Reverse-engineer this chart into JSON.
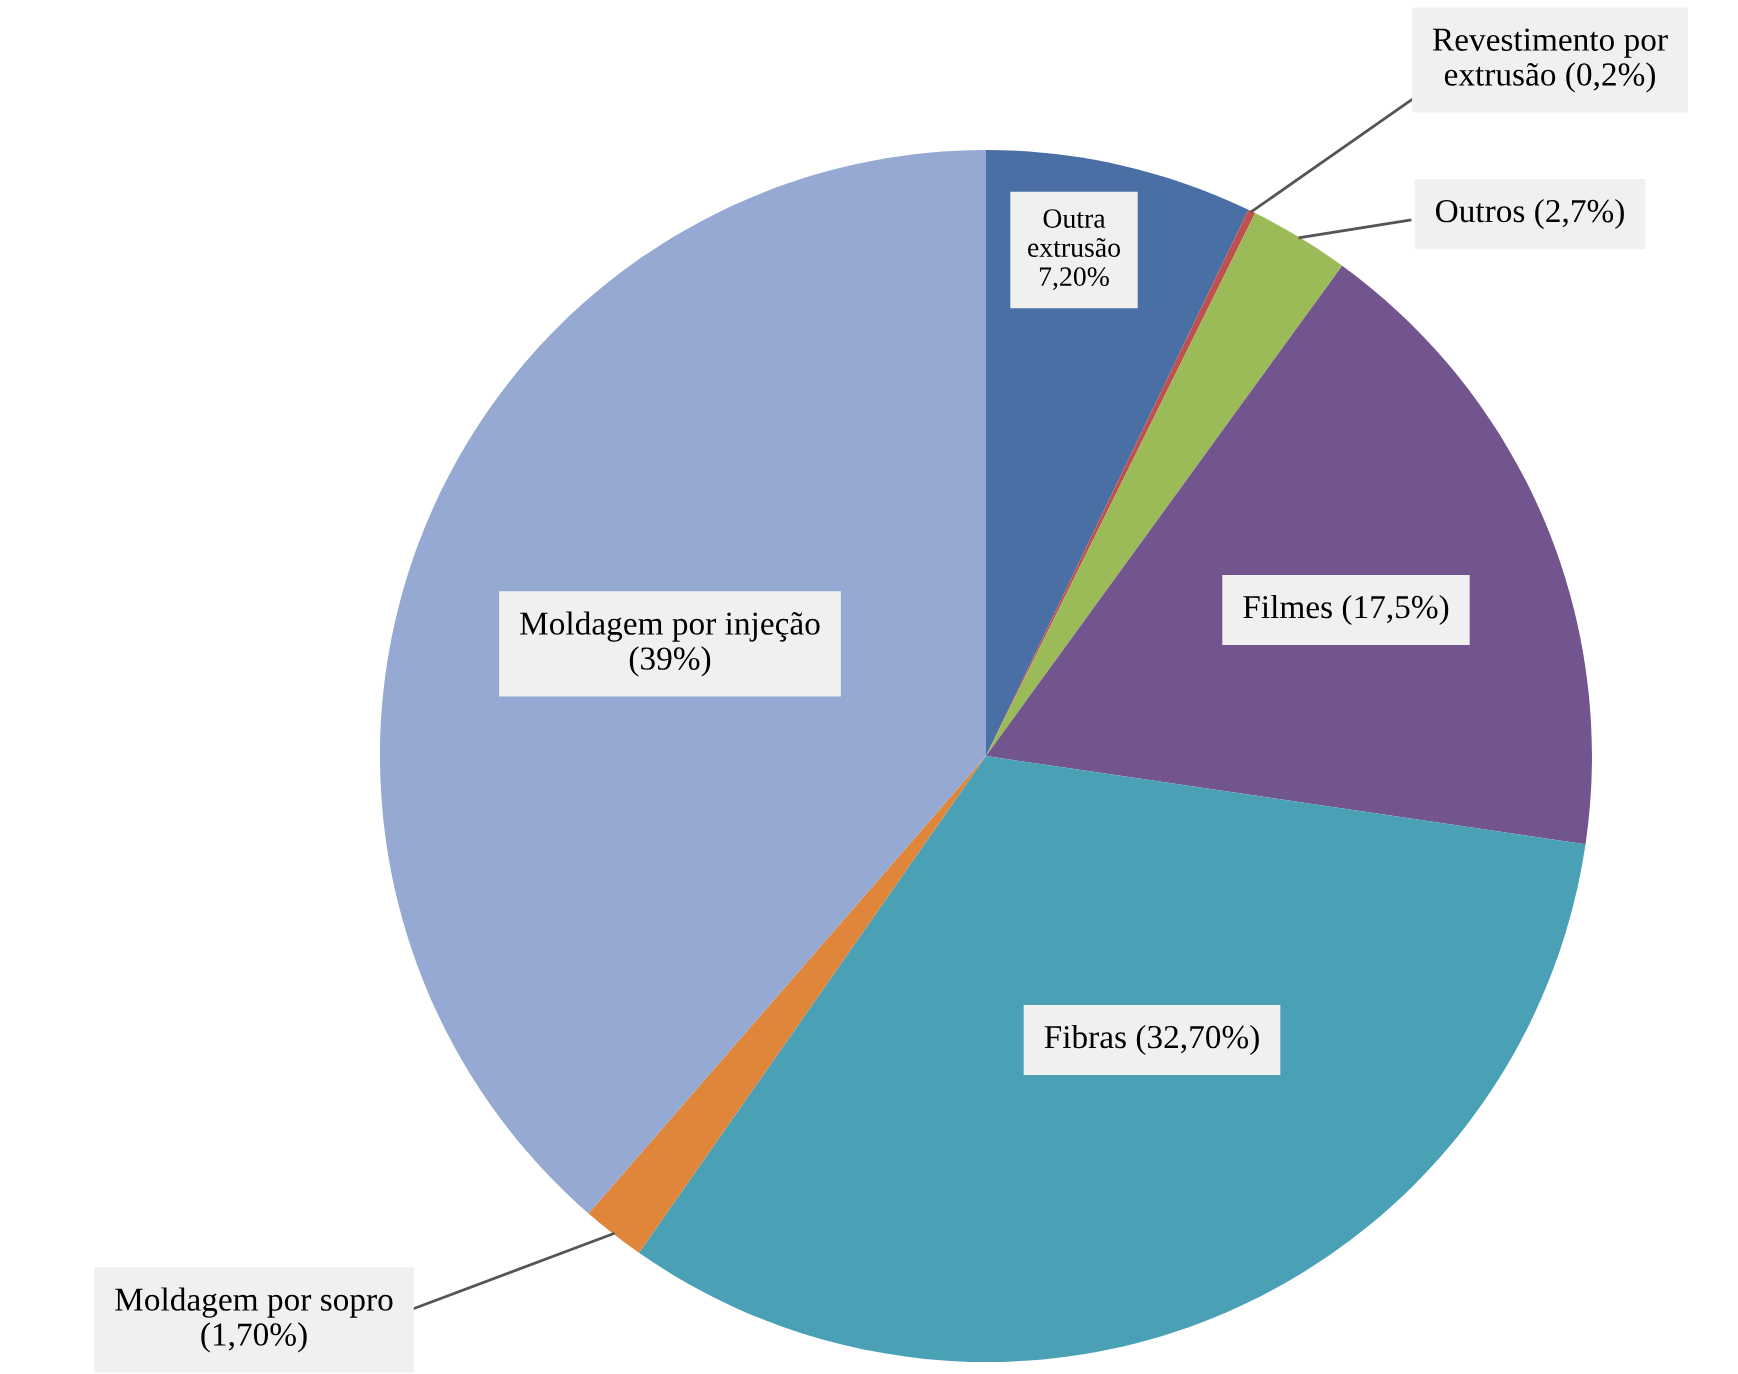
{
  "chart_data": {
    "type": "pie",
    "categories": [
      "Outra extrusão",
      "Revestimento por extrusão",
      "Outros",
      "Filmes",
      "Fibras",
      "Moldagem por sopro",
      "Moldagem por injeção"
    ],
    "values": [
      7.2,
      0.2,
      2.7,
      17.5,
      32.7,
      1.7,
      39
    ],
    "colors": [
      "#4a6fa5",
      "#c0504d",
      "#9bbb59",
      "#72558f",
      "#4aa0b5",
      "#e0863a",
      "#95a9d3"
    ],
    "value_labels": [
      "7,20%",
      "(0,2%)",
      "(2,7%)",
      "(17,5%)",
      "(32,70%)",
      "(1,70%)",
      "(39%)"
    ],
    "legend": false
  }
}
